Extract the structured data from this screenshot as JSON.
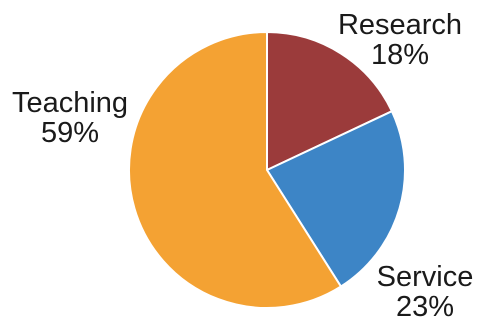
{
  "chart_data": {
    "type": "pie",
    "title": "",
    "slices": [
      {
        "name": "Research",
        "value": 18,
        "label": "18%",
        "color": "#9b3b3b"
      },
      {
        "name": "Service",
        "value": 23,
        "label": "23%",
        "color": "#3d85c6"
      },
      {
        "name": "Teaching",
        "value": 59,
        "label": "59%",
        "color": "#f4a233"
      }
    ],
    "start_angle": "12 o'clock",
    "direction": "clockwise",
    "legend": "none",
    "labels": "outside"
  }
}
